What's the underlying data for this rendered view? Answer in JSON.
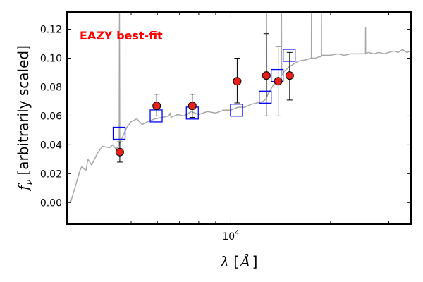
{
  "chart_data": {
    "type": "scatter",
    "title": "",
    "xlabel": "λ [Å]",
    "ylabel": "f_ν [arbitrarily scaled]",
    "xscale": "log",
    "xlim": [
      3200,
      35000
    ],
    "ylim": [
      -0.015,
      0.132
    ],
    "yticks": [
      0.0,
      0.02,
      0.04,
      0.06,
      0.08,
      0.1,
      0.12
    ],
    "ytick_labels": [
      "0.00",
      "0.02",
      "0.04",
      "0.06",
      "0.08",
      "0.10",
      "0.12"
    ],
    "xtick_labels": [
      {
        "value": 10000,
        "base": "10",
        "exp": "4"
      }
    ],
    "grid": false,
    "annotation": {
      "text": "EAZY best-fit",
      "color": "#ff0000"
    },
    "colors": {
      "template": "#a6a6a6",
      "observed_fill": "#e8201a",
      "model_box": "#0000ff",
      "axis": "#000000"
    },
    "series": [
      {
        "marker": "line",
        "x": [
          3280,
          3400,
          3500,
          3550,
          3650,
          3700,
          3800,
          3950,
          4100,
          4300,
          4400,
          4500,
          4600,
          4610,
          4620,
          4700,
          4850,
          5000,
          5200,
          5400,
          5600,
          5900,
          6200,
          6500,
          6563,
          6600,
          6900,
          7200,
          7600,
          8000,
          8500,
          9000,
          9500,
          10000,
          10500,
          11000,
          11500,
          12000,
          12500,
          12800,
          12820,
          12840,
          13000,
          13500,
          14000,
          14200,
          14220,
          14240,
          14500,
          15000,
          15500,
          16000,
          17000,
          17500,
          17520,
          17540,
          18000,
          18500,
          18750,
          18770,
          18790,
          19000,
          20000,
          21000,
          22000,
          23000,
          24000,
          25000,
          25500,
          25520,
          25540,
          26000,
          27000,
          28000,
          29000,
          30000,
          31000,
          32000,
          33000,
          34000,
          35000
        ],
        "y": [
          0.0,
          0.012,
          0.022,
          0.025,
          0.022,
          0.03,
          0.026,
          0.034,
          0.039,
          0.038,
          0.04,
          0.037,
          0.04,
          0.132,
          0.041,
          0.045,
          0.052,
          0.056,
          0.058,
          0.054,
          0.056,
          0.058,
          0.059,
          0.06,
          0.062,
          0.059,
          0.061,
          0.06,
          0.063,
          0.061,
          0.063,
          0.062,
          0.064,
          0.064,
          0.066,
          0.066,
          0.068,
          0.069,
          0.07,
          0.072,
          0.132,
          0.073,
          0.076,
          0.082,
          0.085,
          0.087,
          0.132,
          0.088,
          0.091,
          0.094,
          0.096,
          0.098,
          0.099,
          0.1,
          0.132,
          0.1,
          0.1,
          0.101,
          0.101,
          0.132,
          0.102,
          0.102,
          0.102,
          0.103,
          0.102,
          0.103,
          0.103,
          0.103,
          0.103,
          0.121,
          0.103,
          0.104,
          0.103,
          0.104,
          0.103,
          0.104,
          0.105,
          0.104,
          0.106,
          0.104,
          0.105
        ]
      },
      {
        "marker": "square",
        "x": [
          4600,
          5950,
          7650,
          10400,
          12700,
          13800,
          15000
        ],
        "y": [
          0.048,
          0.06,
          0.062,
          0.064,
          0.073,
          0.088,
          0.102
        ]
      },
      {
        "marker": "circle",
        "x": [
          4620,
          5970,
          7650,
          10450,
          12800,
          13900,
          15050
        ],
        "y": [
          0.035,
          0.067,
          0.067,
          0.084,
          0.088,
          0.084,
          0.088
        ],
        "yerr_low": [
          0.007,
          0.007,
          0.008,
          0.015,
          0.028,
          0.024,
          0.017
        ],
        "yerr_high": [
          0.007,
          0.008,
          0.008,
          0.016,
          0.029,
          0.024,
          0.016
        ]
      }
    ]
  }
}
